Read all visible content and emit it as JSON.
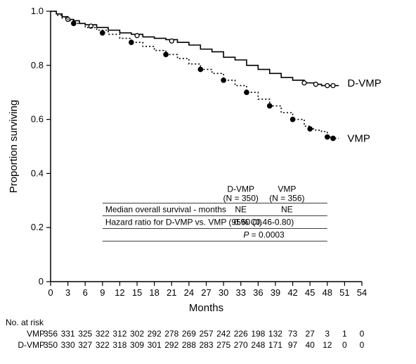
{
  "chart": {
    "type": "kaplan-meier",
    "background_color": "#ffffff",
    "axis_color": "#000000",
    "line_width_axis": 1.5,
    "y": {
      "label": "Proportion surviving",
      "min": 0,
      "max": 1.0,
      "ticks": [
        0,
        0.2,
        0.4,
        0.6,
        0.8,
        1.0
      ],
      "label_fontsize": 15,
      "tick_fontsize": 13
    },
    "x": {
      "label": "Months",
      "min": 0,
      "max": 54,
      "ticks": [
        0,
        3,
        6,
        9,
        12,
        15,
        18,
        21,
        24,
        27,
        30,
        33,
        36,
        39,
        42,
        45,
        48,
        51,
        54
      ],
      "label_fontsize": 15,
      "tick_fontsize": 13
    },
    "series": [
      {
        "name": "D-VMP",
        "color": "#000000",
        "line_width": 1.6,
        "marker": "open-circle",
        "marker_size": 3.0,
        "dash": "solid",
        "points": [
          [
            0,
            1.0
          ],
          [
            1,
            0.99
          ],
          [
            2,
            0.98
          ],
          [
            3,
            0.97
          ],
          [
            4,
            0.965
          ],
          [
            5,
            0.955
          ],
          [
            6,
            0.95
          ],
          [
            8,
            0.94
          ],
          [
            10,
            0.93
          ],
          [
            12,
            0.92
          ],
          [
            14,
            0.915
          ],
          [
            16,
            0.905
          ],
          [
            18,
            0.9
          ],
          [
            20,
            0.895
          ],
          [
            22,
            0.885
          ],
          [
            24,
            0.875
          ],
          [
            26,
            0.86
          ],
          [
            28,
            0.85
          ],
          [
            30,
            0.83
          ],
          [
            32,
            0.82
          ],
          [
            34,
            0.8
          ],
          [
            36,
            0.785
          ],
          [
            38,
            0.77
          ],
          [
            40,
            0.755
          ],
          [
            42,
            0.745
          ],
          [
            44,
            0.735
          ],
          [
            46,
            0.73
          ],
          [
            47,
            0.725
          ],
          [
            48,
            0.725
          ],
          [
            50,
            0.725
          ]
        ],
        "censor_points": [
          [
            3,
            0.97
          ],
          [
            7,
            0.945
          ],
          [
            15,
            0.91
          ],
          [
            21,
            0.89
          ],
          [
            44,
            0.735
          ],
          [
            46,
            0.73
          ],
          [
            48,
            0.725
          ],
          [
            49,
            0.725
          ]
        ]
      },
      {
        "name": "VMP",
        "color": "#000000",
        "line_width": 1.6,
        "marker": "filled-circle",
        "marker_size": 3.2,
        "dash": "2,3",
        "points": [
          [
            0,
            1.0
          ],
          [
            1,
            0.985
          ],
          [
            2,
            0.975
          ],
          [
            3,
            0.965
          ],
          [
            4,
            0.955
          ],
          [
            6,
            0.94
          ],
          [
            8,
            0.93
          ],
          [
            10,
            0.915
          ],
          [
            12,
            0.9
          ],
          [
            14,
            0.885
          ],
          [
            16,
            0.87
          ],
          [
            18,
            0.855
          ],
          [
            20,
            0.84
          ],
          [
            22,
            0.825
          ],
          [
            24,
            0.805
          ],
          [
            26,
            0.785
          ],
          [
            28,
            0.77
          ],
          [
            30,
            0.745
          ],
          [
            32,
            0.725
          ],
          [
            34,
            0.7
          ],
          [
            36,
            0.675
          ],
          [
            38,
            0.65
          ],
          [
            40,
            0.625
          ],
          [
            42,
            0.6
          ],
          [
            44,
            0.575
          ],
          [
            45,
            0.565
          ],
          [
            46,
            0.56
          ],
          [
            47,
            0.555
          ],
          [
            48,
            0.535
          ],
          [
            49,
            0.53
          ],
          [
            50,
            0.53
          ]
        ],
        "censor_points": [
          [
            4,
            0.955
          ],
          [
            9,
            0.92
          ],
          [
            14,
            0.885
          ],
          [
            20,
            0.84
          ],
          [
            26,
            0.785
          ],
          [
            30,
            0.745
          ],
          [
            34,
            0.7
          ],
          [
            38,
            0.65
          ],
          [
            42,
            0.6
          ],
          [
            45,
            0.565
          ],
          [
            48,
            0.535
          ],
          [
            49,
            0.53
          ]
        ]
      }
    ],
    "series_label_positions": {
      "D-VMP": {
        "x": 51,
        "y": 0.735
      },
      "VMP": {
        "x": 51,
        "y": 0.53
      }
    }
  },
  "table": {
    "border_color": "#000000",
    "line_width": 0.8,
    "fontsize": 12,
    "header_arm1": "D-VMP",
    "header_arm1_n": "(N = 350)",
    "header_arm2": "VMP",
    "header_arm2_n": "(N = 356)",
    "rows": [
      {
        "label": "Median overall survival - months",
        "col1": "NE",
        "col2": "NE"
      },
      {
        "label": "Hazard ratio for D-VMP vs. VMP (95% CI)",
        "span": "0.60 (0.46-0.80)"
      }
    ],
    "pvalue_label": "P",
    "pvalue_eq": " = 0.0003"
  },
  "risk": {
    "title": "No. at risk",
    "fontsize": 12,
    "rows": [
      {
        "label": "VMP",
        "values": [
          356,
          331,
          325,
          322,
          312,
          302,
          292,
          278,
          269,
          257,
          242,
          226,
          198,
          132,
          73,
          27,
          3,
          1,
          0
        ]
      },
      {
        "label": "D-VMP",
        "values": [
          350,
          330,
          327,
          322,
          318,
          309,
          301,
          292,
          288,
          283,
          275,
          270,
          248,
          171,
          97,
          40,
          12,
          0,
          0
        ]
      }
    ]
  }
}
